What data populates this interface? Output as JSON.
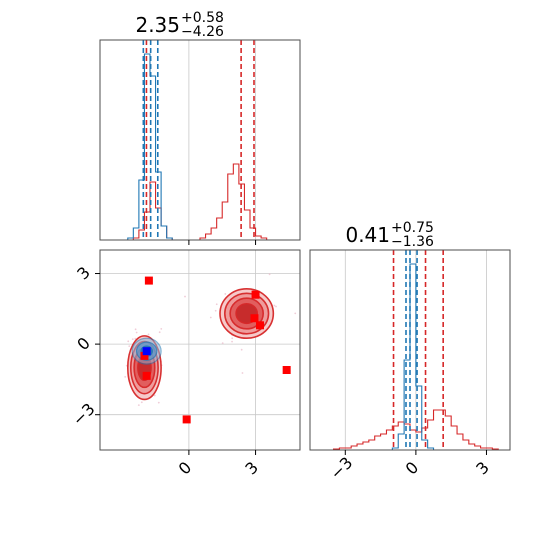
{
  "chart_data": [
    {
      "type": "histogram",
      "panel": "marginal-param-1",
      "title": {
        "value": "2.35",
        "upper": "+0.58",
        "lower": "−4.26"
      },
      "xlim": [
        -4.0,
        5.0
      ],
      "ylim": [
        0,
        1.0
      ],
      "grid": true,
      "quantile_lines": {
        "red": [
          -1.91,
          2.35,
          2.93
        ],
        "blue": [
          -2.05,
          -1.72,
          -1.4
        ]
      },
      "series": [
        {
          "color": "#d62728",
          "bin_edges": [
            -4.0,
            -3.75,
            -3.5,
            -3.25,
            -3.0,
            -2.75,
            -2.5,
            -2.25,
            -2.0,
            -1.75,
            -1.5,
            -1.25,
            -1.0,
            -0.75,
            -0.5,
            -0.25,
            0.0,
            0.25,
            0.5,
            0.75,
            1.0,
            1.25,
            1.5,
            1.75,
            2.0,
            2.25,
            2.5,
            2.75,
            3.0,
            3.25,
            3.5,
            3.75,
            4.0,
            4.25,
            4.5,
            4.75,
            5.0
          ],
          "values": [
            0,
            0,
            0,
            0,
            0,
            0,
            0.01,
            0.05,
            0.14,
            0.29,
            0.16,
            0.07,
            0.01,
            0,
            0,
            0,
            0,
            0,
            0.01,
            0.03,
            0.06,
            0.11,
            0.19,
            0.33,
            0.38,
            0.28,
            0.15,
            0.06,
            0.02,
            0.01,
            0,
            0,
            0,
            0,
            0,
            0
          ]
        },
        {
          "color": "#1f77b4",
          "bin_edges": [
            -4.0,
            -3.75,
            -3.5,
            -3.25,
            -3.0,
            -2.75,
            -2.5,
            -2.25,
            -2.0,
            -1.75,
            -1.5,
            -1.25,
            -1.0,
            -0.75,
            -0.5,
            -0.25,
            0.0
          ],
          "values": [
            0,
            0,
            0,
            0,
            0,
            0.01,
            0.06,
            0.3,
            0.93,
            0.82,
            0.34,
            0.07,
            0.01,
            0,
            0,
            0
          ]
        }
      ]
    },
    {
      "type": "scatter",
      "panel": "joint-param-1-param-2",
      "xlim": [
        -4.0,
        5.0
      ],
      "ylim": [
        -4.5,
        4.0
      ],
      "xticks": [
        "0",
        "3"
      ],
      "yticks": [
        "3",
        "0",
        "−3"
      ],
      "grid": true,
      "red_contour_modes": [
        {
          "cx": -2.0,
          "cy": -1.0,
          "sx": 0.75,
          "sy": 1.35
        },
        {
          "cx": 2.6,
          "cy": 1.3,
          "sx": 1.2,
          "sy": 1.05
        }
      ],
      "blue_contour_mode": {
        "cx": -1.9,
        "cy": -0.3,
        "sx": 0.65,
        "sy": 0.55
      },
      "red_markers": [
        {
          "x": -1.8,
          "y": 2.7
        },
        {
          "x": 3.0,
          "y": 2.1
        },
        {
          "x": 2.95,
          "y": 1.1
        },
        {
          "x": 3.2,
          "y": 0.8
        },
        {
          "x": 4.4,
          "y": -1.1
        },
        {
          "x": -0.1,
          "y": -3.2
        },
        {
          "x": -2.0,
          "y": -0.5
        },
        {
          "x": -1.9,
          "y": -1.35
        }
      ],
      "blue_markers": [
        {
          "x": -1.9,
          "y": -0.3
        }
      ]
    },
    {
      "type": "histogram",
      "panel": "marginal-param-2",
      "title": {
        "value": "0.41",
        "upper": "+0.75",
        "lower": "−1.36"
      },
      "xlim": [
        -4.5,
        4.0
      ],
      "ylim": [
        0,
        1.0
      ],
      "xticks": [
        "−3",
        "0",
        "3"
      ],
      "grid": true,
      "quantile_lines": {
        "red": [
          -0.95,
          0.41,
          1.16
        ],
        "blue": [
          -0.42,
          -0.25,
          0.05
        ]
      },
      "series": [
        {
          "color": "#d62728",
          "bin_edges": [
            -4.5,
            -4.25,
            -4.0,
            -3.75,
            -3.5,
            -3.25,
            -3.0,
            -2.75,
            -2.5,
            -2.25,
            -2.0,
            -1.75,
            -1.5,
            -1.25,
            -1.0,
            -0.75,
            -0.5,
            -0.25,
            0.0,
            0.25,
            0.5,
            0.75,
            1.0,
            1.25,
            1.5,
            1.75,
            2.0,
            2.25,
            2.5,
            2.75,
            3.0,
            3.25,
            3.5,
            3.75,
            4.0
          ],
          "values": [
            0,
            0,
            0,
            0,
            0.005,
            0.01,
            0.01,
            0.02,
            0.03,
            0.04,
            0.05,
            0.07,
            0.08,
            0.1,
            0.12,
            0.14,
            0.13,
            0.1,
            0.09,
            0.11,
            0.15,
            0.2,
            0.2,
            0.17,
            0.12,
            0.08,
            0.05,
            0.03,
            0.02,
            0.01,
            0.01,
            0.005,
            0,
            0
          ]
        },
        {
          "color": "#1f77b4",
          "bin_edges": [
            -4.5,
            -4.25,
            -4.0,
            -3.75,
            -3.5,
            -3.25,
            -3.0,
            -2.75,
            -2.5,
            -2.25,
            -2.0,
            -1.75,
            -1.5,
            -1.25,
            -1.0,
            -0.75,
            -0.5,
            -0.25,
            0.0,
            0.25,
            0.5,
            0.75,
            1.0,
            1.25,
            1.5,
            1.75,
            2.0,
            2.25,
            2.5,
            2.75,
            3.0,
            3.25,
            3.5,
            3.75,
            4.0
          ],
          "values": [
            0,
            0,
            0,
            0,
            0,
            0,
            0,
            0,
            0,
            0,
            0,
            0,
            0,
            0,
            0.01,
            0.08,
            0.45,
            0.93,
            0.32,
            0.05,
            0.01,
            0,
            0,
            0,
            0,
            0,
            0,
            0,
            0,
            0,
            0,
            0,
            0,
            0
          ]
        }
      ]
    }
  ]
}
